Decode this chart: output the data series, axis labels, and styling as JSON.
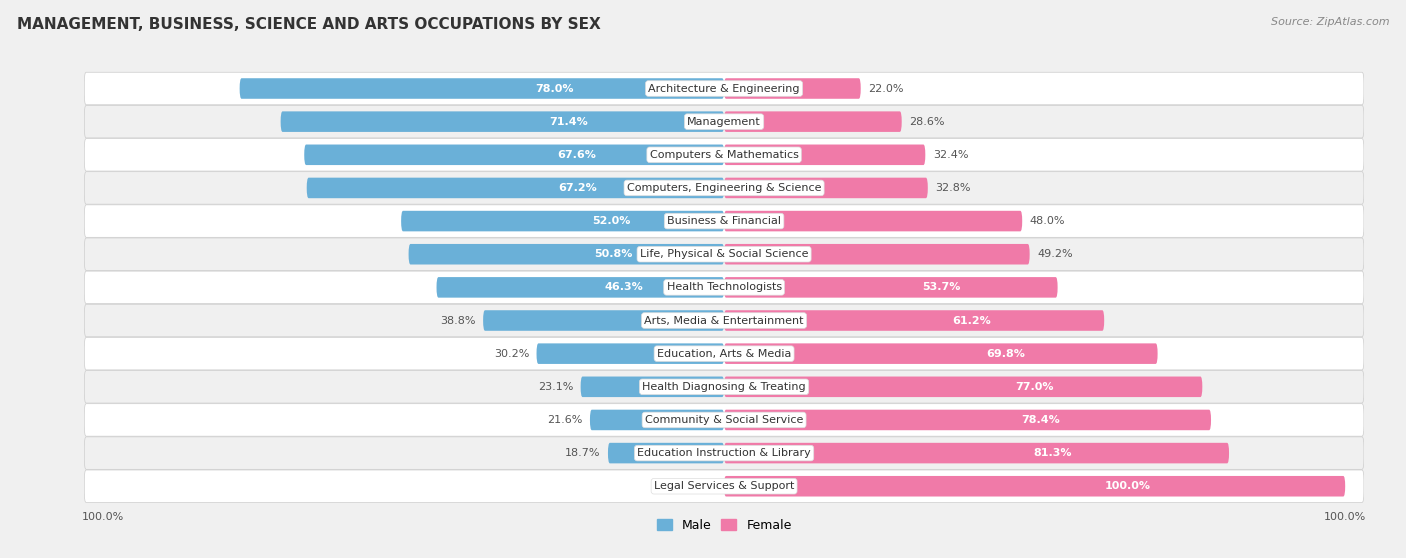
{
  "title": "MANAGEMENT, BUSINESS, SCIENCE AND ARTS OCCUPATIONS BY SEX",
  "source": "Source: ZipAtlas.com",
  "categories": [
    "Architecture & Engineering",
    "Management",
    "Computers & Mathematics",
    "Computers, Engineering & Science",
    "Business & Financial",
    "Life, Physical & Social Science",
    "Health Technologists",
    "Arts, Media & Entertainment",
    "Education, Arts & Media",
    "Health Diagnosing & Treating",
    "Community & Social Service",
    "Education Instruction & Library",
    "Legal Services & Support"
  ],
  "male": [
    78.0,
    71.4,
    67.6,
    67.2,
    52.0,
    50.8,
    46.3,
    38.8,
    30.2,
    23.1,
    21.6,
    18.7,
    0.0
  ],
  "female": [
    22.0,
    28.6,
    32.4,
    32.8,
    48.0,
    49.2,
    53.7,
    61.2,
    69.8,
    77.0,
    78.4,
    81.3,
    100.0
  ],
  "male_color": "#6ab0d8",
  "female_color": "#f07aa8",
  "row_colors": [
    "#ffffff",
    "#f0f0f0"
  ],
  "title_fontsize": 11,
  "source_fontsize": 8,
  "label_fontsize": 8,
  "cat_fontsize": 8,
  "bar_height": 0.62,
  "fig_width": 14.06,
  "fig_height": 5.58
}
